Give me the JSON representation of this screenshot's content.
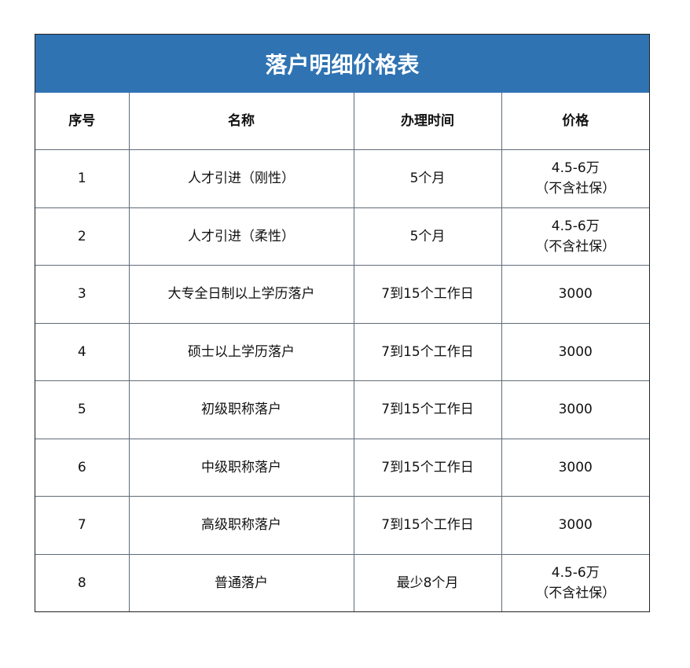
{
  "title": "落户明细价格表",
  "headers": [
    "序号",
    "名称",
    "办理时间",
    "价格"
  ],
  "rows": [
    {
      "no": "1",
      "name": "人才引进（刚性）",
      "time": "5个月",
      "price": {
        "line1": "4.5-6万",
        "line2": "（不含社保）"
      }
    },
    {
      "no": "2",
      "name": "人才引进（柔性）",
      "time": "5个月",
      "price": {
        "line1": "4.5-6万",
        "line2": "（不含社保）"
      }
    },
    {
      "no": "3",
      "name": "大专全日制以上学历落户",
      "time": "7到15个工作日",
      "price": {
        "line1": "3000"
      }
    },
    {
      "no": "4",
      "name": "硕士以上学历落户",
      "time": "7到15个工作日",
      "price": {
        "line1": "3000"
      }
    },
    {
      "no": "5",
      "name": "初级职称落户",
      "time": "7到15个工作日",
      "price": {
        "line1": "3000"
      }
    },
    {
      "no": "6",
      "name": "中级职称落户",
      "time": "7到15个工作日",
      "price": {
        "line1": "3000"
      }
    },
    {
      "no": "7",
      "name": "高级职称落户",
      "time": "7到15个工作日",
      "price": {
        "line1": "3000"
      }
    },
    {
      "no": "8",
      "name": "普通落户",
      "time": "最少8个月",
      "price": {
        "line1": "4.5-6万",
        "line2": "（不含社保）"
      }
    }
  ],
  "colors": {
    "title_bg": "#2f73b3",
    "title_text": "#ffffff",
    "grid": "#5f6b78"
  }
}
